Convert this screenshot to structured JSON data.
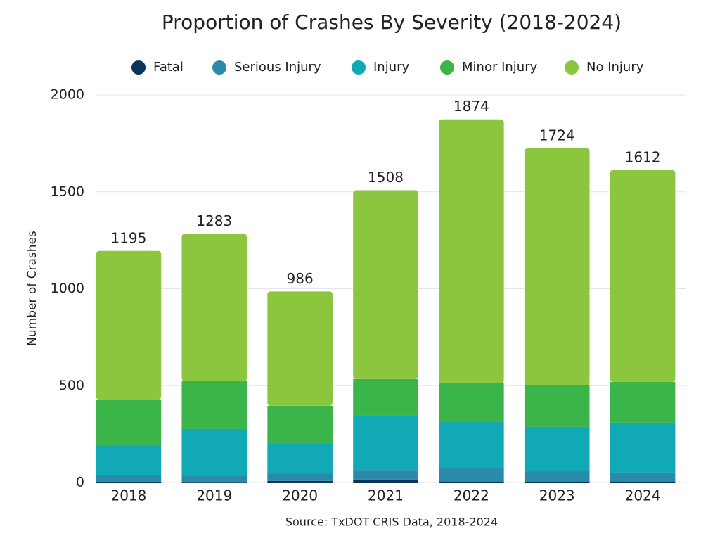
{
  "chart_data": {
    "type": "stacked_bar",
    "title": "Proportion of Crashes By Severity (2018-2024)",
    "y_label": "Number of Crashes",
    "source": "Source: TxDOT CRIS Data, 2018-2024",
    "categories": [
      "2018",
      "2019",
      "2020",
      "2021",
      "2022",
      "2023",
      "2024"
    ],
    "series": [
      {
        "name": "Fatal",
        "color": "#0d3559",
        "values": [
          4,
          3,
          8,
          15,
          5,
          5,
          5
        ]
      },
      {
        "name": "Serious Injury",
        "color": "#2a8aab",
        "values": [
          36,
          33,
          39,
          50,
          68,
          53,
          46
        ]
      },
      {
        "name": "Injury",
        "color": "#10a9b5",
        "values": [
          156,
          240,
          156,
          280,
          239,
          229,
          258
        ]
      },
      {
        "name": "Minor Injury",
        "color": "#3bb54a",
        "values": [
          232,
          247,
          193,
          189,
          200,
          214,
          210
        ]
      },
      {
        "name": "No Injury",
        "color": "#8cc63f",
        "values": [
          767,
          760,
          590,
          974,
          1362,
          1223,
          1093
        ]
      }
    ],
    "totals": [
      1195,
      1283,
      986,
      1508,
      1874,
      1724,
      1612
    ],
    "ylim": [
      0,
      2000
    ],
    "yticks": [
      0,
      500,
      1000,
      1500,
      2000
    ],
    "grid": true,
    "legend": "top"
  }
}
